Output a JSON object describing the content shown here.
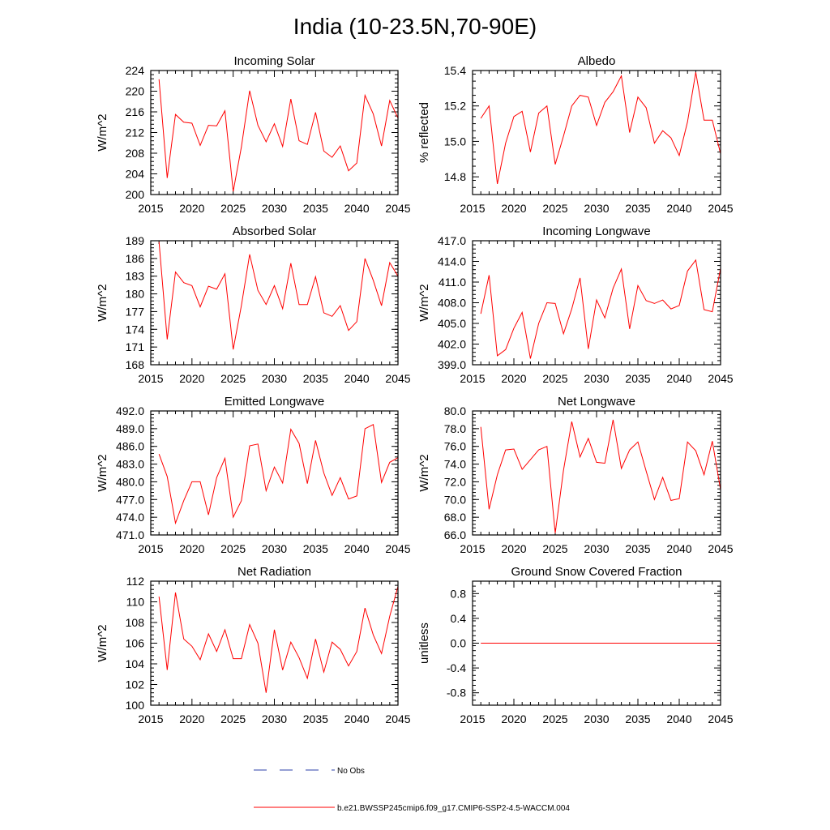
{
  "figure": {
    "title": "India (10-23.5N,70-90E)"
  },
  "legend": {
    "obs_label": "No Obs",
    "model_label": "b.e21.BWSSP245cmip6.f09_g17.CMIP6-SSP2-4.5-WACCM.004",
    "obs_color": "#2b3fa8",
    "model_color": "#ff0000"
  },
  "line_color": "#ff0000",
  "chart_data": [
    {
      "type": "line",
      "title": "Incoming Solar",
      "ylabel": "W/m^2",
      "xlim": [
        2015,
        2045
      ],
      "ylim": [
        200,
        224
      ],
      "xticks": [
        "2015",
        "2020",
        "2025",
        "2030",
        "2035",
        "2040",
        "2045"
      ],
      "yticks": [
        "200",
        "204",
        "208",
        "212",
        "216",
        "220",
        "224"
      ],
      "x": [
        2016,
        2017,
        2018,
        2019,
        2020,
        2021,
        2022,
        2023,
        2024,
        2025,
        2026,
        2027,
        2028,
        2029,
        2030,
        2031,
        2032,
        2033,
        2034,
        2035,
        2036,
        2037,
        2038,
        2039,
        2040,
        2041,
        2042,
        2043,
        2044,
        2045
      ],
      "series": [
        {
          "values": [
            222.3,
            203.2,
            215.5,
            214.0,
            213.8,
            209.5,
            213.4,
            213.3,
            216.2,
            200.6,
            209.2,
            220.1,
            213.4,
            210.2,
            213.7,
            209.3,
            218.5,
            210.4,
            209.7,
            215.9,
            208.4,
            207.2,
            209.4,
            204.6,
            206.1,
            219.2,
            215.6,
            209.4,
            218.2,
            214.8
          ]
        }
      ]
    },
    {
      "type": "line",
      "title": "Albedo",
      "ylabel": "% reflected",
      "xlim": [
        2015,
        2045
      ],
      "ylim": [
        14.7,
        15.4
      ],
      "xticks": [
        "2015",
        "2020",
        "2025",
        "2030",
        "2035",
        "2040",
        "2045"
      ],
      "yticks": [
        "14.8",
        "15.0",
        "15.2",
        "15.4"
      ],
      "x": [
        2016,
        2017,
        2018,
        2019,
        2020,
        2021,
        2022,
        2023,
        2024,
        2025,
        2026,
        2027,
        2028,
        2029,
        2030,
        2031,
        2032,
        2033,
        2034,
        2035,
        2036,
        2037,
        2038,
        2039,
        2040,
        2041,
        2042,
        2043,
        2044,
        2045
      ],
      "series": [
        {
          "values": [
            15.13,
            15.2,
            14.76,
            14.99,
            15.14,
            15.17,
            14.94,
            15.16,
            15.2,
            14.87,
            15.03,
            15.2,
            15.26,
            15.25,
            15.09,
            15.22,
            15.28,
            15.37,
            15.05,
            15.25,
            15.19,
            14.99,
            15.06,
            15.02,
            14.92,
            15.11,
            15.39,
            15.12,
            15.12,
            14.93
          ]
        }
      ]
    },
    {
      "type": "line",
      "title": "Absorbed Solar",
      "ylabel": "W/m^2",
      "xlim": [
        2015,
        2045
      ],
      "ylim": [
        168,
        189
      ],
      "xticks": [
        "2015",
        "2020",
        "2025",
        "2030",
        "2035",
        "2040",
        "2045"
      ],
      "yticks": [
        "168",
        "171",
        "174",
        "177",
        "180",
        "183",
        "186",
        "189"
      ],
      "x": [
        2016,
        2017,
        2018,
        2019,
        2020,
        2021,
        2022,
        2023,
        2024,
        2025,
        2026,
        2027,
        2028,
        2029,
        2030,
        2031,
        2032,
        2033,
        2034,
        2035,
        2036,
        2037,
        2038,
        2039,
        2040,
        2041,
        2042,
        2043,
        2044,
        2045
      ],
      "series": [
        {
          "values": [
            188.8,
            172.3,
            183.7,
            181.9,
            181.4,
            177.8,
            181.3,
            180.8,
            183.4,
            170.6,
            178.0,
            186.7,
            180.6,
            178.2,
            181.4,
            177.5,
            185.2,
            178.2,
            178.2,
            182.9,
            176.8,
            176.2,
            178.0,
            173.8,
            175.3,
            186.0,
            182.3,
            178.0,
            185.3,
            183.0
          ]
        }
      ]
    },
    {
      "type": "line",
      "title": "Incoming Longwave",
      "ylabel": "W/m^2",
      "xlim": [
        2015,
        2045
      ],
      "ylim": [
        399,
        417
      ],
      "xticks": [
        "2015",
        "2020",
        "2025",
        "2030",
        "2035",
        "2040",
        "2045"
      ],
      "yticks": [
        "399.0",
        "402.0",
        "405.0",
        "408.0",
        "411.0",
        "414.0",
        "417.0"
      ],
      "x": [
        2016,
        2017,
        2018,
        2019,
        2020,
        2021,
        2022,
        2023,
        2024,
        2025,
        2026,
        2027,
        2028,
        2029,
        2030,
        2031,
        2032,
        2033,
        2034,
        2035,
        2036,
        2037,
        2038,
        2039,
        2040,
        2041,
        2042,
        2043,
        2044,
        2045
      ],
      "series": [
        {
          "values": [
            406.4,
            412.0,
            400.3,
            401.2,
            404.3,
            406.6,
            399.9,
            405.0,
            408.0,
            407.9,
            403.5,
            407.1,
            411.6,
            401.3,
            408.4,
            405.8,
            410.1,
            412.9,
            404.2,
            410.5,
            408.3,
            407.9,
            408.4,
            407.1,
            407.6,
            412.6,
            414.2,
            407.0,
            406.7,
            413.0
          ]
        }
      ]
    },
    {
      "type": "line",
      "title": "Emitted Longwave",
      "ylabel": "W/m^2",
      "xlim": [
        2015,
        2045
      ],
      "ylim": [
        471,
        492
      ],
      "xticks": [
        "2015",
        "2020",
        "2025",
        "2030",
        "2035",
        "2040",
        "2045"
      ],
      "yticks": [
        "471.0",
        "474.0",
        "477.0",
        "480.0",
        "483.0",
        "486.0",
        "489.0",
        "492.0"
      ],
      "x": [
        2016,
        2017,
        2018,
        2019,
        2020,
        2021,
        2022,
        2023,
        2024,
        2025,
        2026,
        2027,
        2028,
        2029,
        2030,
        2031,
        2032,
        2033,
        2034,
        2035,
        2036,
        2037,
        2038,
        2039,
        2040,
        2041,
        2042,
        2043,
        2044,
        2045
      ],
      "series": [
        {
          "values": [
            484.7,
            480.9,
            473.0,
            476.8,
            480.0,
            480.0,
            474.4,
            480.7,
            484.0,
            474.0,
            476.8,
            486.1,
            486.4,
            478.5,
            482.5,
            479.8,
            488.9,
            486.5,
            479.7,
            487.0,
            481.5,
            477.7,
            480.7,
            477.1,
            477.6,
            489.0,
            489.7,
            479.9,
            483.3,
            484.1
          ]
        }
      ]
    },
    {
      "type": "line",
      "title": "Net Longwave",
      "ylabel": "W/m^2",
      "xlim": [
        2015,
        2045
      ],
      "ylim": [
        66,
        80
      ],
      "xticks": [
        "2015",
        "2020",
        "2025",
        "2030",
        "2035",
        "2040",
        "2045"
      ],
      "yticks": [
        "66.0",
        "68.0",
        "70.0",
        "72.0",
        "74.0",
        "76.0",
        "78.0",
        "80.0"
      ],
      "x": [
        2016,
        2017,
        2018,
        2019,
        2020,
        2021,
        2022,
        2023,
        2024,
        2025,
        2026,
        2027,
        2028,
        2029,
        2030,
        2031,
        2032,
        2033,
        2034,
        2035,
        2036,
        2037,
        2038,
        2039,
        2040,
        2041,
        2042,
        2043,
        2044,
        2045
      ],
      "series": [
        {
          "values": [
            78.2,
            68.9,
            72.8,
            75.6,
            75.7,
            73.4,
            74.5,
            75.6,
            76.0,
            66.2,
            73.3,
            78.8,
            74.8,
            76.9,
            74.2,
            74.1,
            79.0,
            73.5,
            75.6,
            76.5,
            73.2,
            70.0,
            72.5,
            69.9,
            70.1,
            76.5,
            75.5,
            72.8,
            76.6,
            71.1
          ]
        }
      ]
    },
    {
      "type": "line",
      "title": "Net Radiation",
      "ylabel": "W/m^2",
      "xlim": [
        2015,
        2045
      ],
      "ylim": [
        100,
        112
      ],
      "xticks": [
        "2015",
        "2020",
        "2025",
        "2030",
        "2035",
        "2040",
        "2045"
      ],
      "yticks": [
        "100",
        "102",
        "104",
        "106",
        "108",
        "110",
        "112"
      ],
      "x": [
        2016,
        2017,
        2018,
        2019,
        2020,
        2021,
        2022,
        2023,
        2024,
        2025,
        2026,
        2027,
        2028,
        2029,
        2030,
        2031,
        2032,
        2033,
        2034,
        2035,
        2036,
        2037,
        2038,
        2039,
        2040,
        2041,
        2042,
        2043,
        2044,
        2045
      ],
      "series": [
        {
          "values": [
            110.5,
            103.4,
            110.9,
            106.4,
            105.7,
            104.4,
            106.9,
            105.2,
            107.3,
            104.5,
            104.5,
            107.8,
            106.0,
            101.2,
            107.3,
            103.4,
            106.1,
            104.6,
            102.6,
            106.4,
            103.2,
            106.1,
            105.4,
            103.8,
            105.2,
            109.4,
            106.8,
            105.0,
            108.6,
            111.5
          ]
        }
      ]
    },
    {
      "type": "line",
      "title": "Ground Snow Covered Fraction",
      "ylabel": "unitless",
      "xlim": [
        2015,
        2045
      ],
      "ylim": [
        -1.0,
        1.0
      ],
      "xticks": [
        "2015",
        "2020",
        "2025",
        "2030",
        "2035",
        "2040",
        "2045"
      ],
      "yticks": [
        "-0.8",
        "-0.4",
        "0.0",
        "0.4",
        "0.8"
      ],
      "x": [
        2016,
        2017,
        2018,
        2019,
        2020,
        2021,
        2022,
        2023,
        2024,
        2025,
        2026,
        2027,
        2028,
        2029,
        2030,
        2031,
        2032,
        2033,
        2034,
        2035,
        2036,
        2037,
        2038,
        2039,
        2040,
        2041,
        2042,
        2043,
        2044,
        2045
      ],
      "series": [
        {
          "values": [
            0,
            0,
            0,
            0,
            0,
            0,
            0,
            0,
            0,
            0,
            0,
            0,
            0,
            0,
            0,
            0,
            0,
            0,
            0,
            0,
            0,
            0,
            0,
            0,
            0,
            0,
            0,
            0,
            0,
            0
          ]
        }
      ]
    }
  ]
}
